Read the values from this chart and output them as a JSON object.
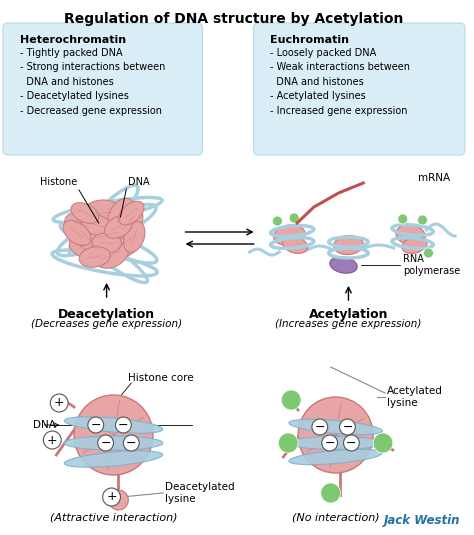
{
  "title": "Regulation of DNA structure by Acetylation",
  "title_fontsize": 10,
  "background_color": "#ffffff",
  "box_left_title": "Heterochromatin",
  "box_left_bullets": "- Tightly packed DNA\n- Strong interactions between\n  DNA and histones\n- Deacetylated lysines\n- Decreased gene expression",
  "box_right_title": "Euchromatin",
  "box_right_bullets": "- Loosely packed DNA\n- Weak interactions between\n  DNA and histones\n- Acetylated lysines\n- Increased gene expression",
  "box_bg_color": "#daeef8",
  "box_border_color": "#b8d8e8",
  "label_deacetylation": "Deacetylation",
  "label_deacetylation_sub": "(Decreases gene expression)",
  "label_acetylation": "Acetylation",
  "label_acetylation_sub": "(Increases gene expression)",
  "label_histone": "Histone",
  "label_dna_top": "DNA",
  "label_mrna": "mRNA",
  "label_rna_pol": "RNA\npolymerase",
  "label_histone_core": "Histone core",
  "label_dna_bot": "DNA",
  "label_deacetylated_lysine": "Deacetylated\nlysine",
  "label_acetylated_lysine": "Acetylated\nlysine",
  "label_attractive": "(Attractive interaction)",
  "label_no_interaction": "(No interaction)",
  "watermark": "Jack Westin",
  "watermark_color": "#2471a3",
  "pink_color": "#e8a5a5",
  "pink_dark": "#c87878",
  "pink_mid": "#d49090",
  "blue_dna_color": "#a8cfe0",
  "blue_dna_dark": "#7fb0cc",
  "green_color": "#7dc870",
  "purple_color": "#9b7bb8",
  "purple_dark": "#7a5a96",
  "red_mrna": "#c0504d"
}
